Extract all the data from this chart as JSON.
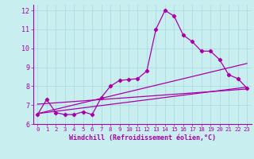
{
  "xlabel": "Windchill (Refroidissement éolien,°C)",
  "bg_color": "#c8eef0",
  "grid_color": "#a8d8dc",
  "line_color": "#aa00aa",
  "axis_color": "#aa00aa",
  "xlim": [
    -0.5,
    23.5
  ],
  "ylim": [
    6,
    12.3
  ],
  "xticks": [
    0,
    1,
    2,
    3,
    4,
    5,
    6,
    7,
    8,
    9,
    10,
    11,
    12,
    13,
    14,
    15,
    16,
    17,
    18,
    19,
    20,
    21,
    22,
    23
  ],
  "yticks": [
    6,
    7,
    8,
    9,
    10,
    11,
    12
  ],
  "line1_x": [
    0,
    1,
    2,
    3,
    4,
    5,
    6,
    7,
    8,
    9,
    10,
    11,
    12,
    13,
    14,
    15,
    16,
    17,
    18,
    19,
    20,
    21,
    22,
    23
  ],
  "line1_y": [
    6.5,
    7.3,
    6.6,
    6.5,
    6.5,
    6.65,
    6.5,
    7.4,
    8.0,
    8.3,
    8.35,
    8.4,
    8.8,
    11.0,
    12.0,
    11.7,
    10.7,
    10.35,
    9.85,
    9.85,
    9.4,
    8.6,
    8.4,
    7.9
  ],
  "line2_x": [
    0,
    23
  ],
  "line2_y": [
    6.55,
    9.2
  ],
  "line3_x": [
    0,
    23
  ],
  "line3_y": [
    7.05,
    7.85
  ],
  "line4_x": [
    0,
    23
  ],
  "line4_y": [
    6.55,
    7.95
  ]
}
